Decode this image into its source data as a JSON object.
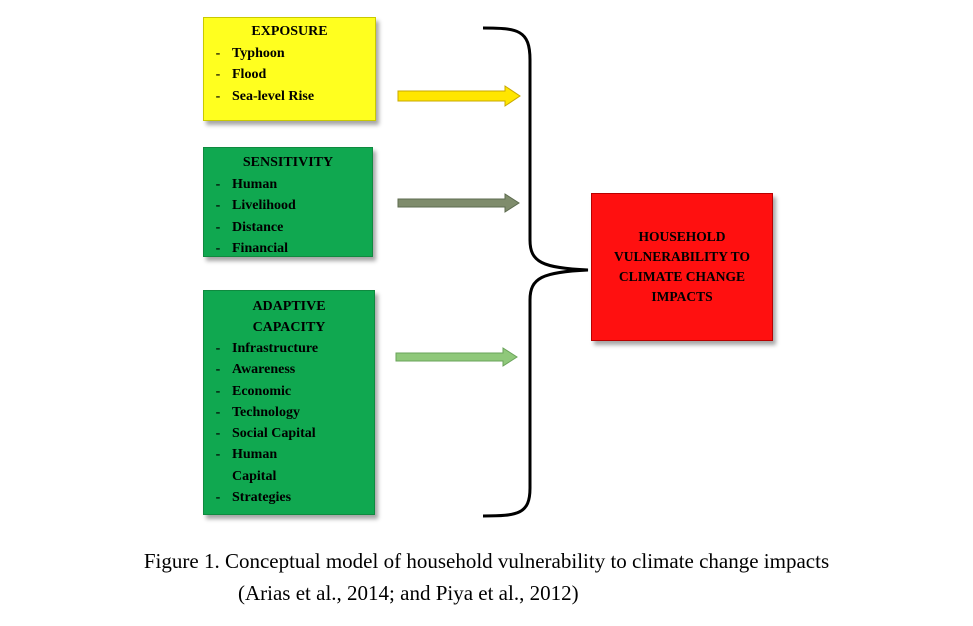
{
  "colors": {
    "exposure": "#ffff1f",
    "sensitivity": "#10a850",
    "adaptive": "#10a850",
    "result": "#ff1010",
    "arrow_yellow": "#ffe600",
    "arrow_gray": "#7f8c6c",
    "arrow_green": "#8fc87a"
  },
  "boxes": {
    "exposure": {
      "title": "EXPOSURE",
      "items": [
        "Typhoon",
        "Flood",
        "Sea-level Rise"
      ]
    },
    "sensitivity": {
      "title": "SENSITIVITY",
      "items": [
        "Human",
        "Livelihood",
        "Distance",
        "Financial"
      ]
    },
    "adaptive": {
      "title_line_1": "ADAPTIVE",
      "title_line_2": "CAPACITY",
      "items": [
        "Infrastructure",
        "Awareness",
        "Economic",
        "Technology",
        "Social Capital",
        "Human",
        "Capital",
        "Strategies"
      ]
    },
    "result": {
      "text": "HOUSEHOLD VULNERABILITY TO CLIMATE CHANGE IMPACTS"
    }
  },
  "dash": "-",
  "caption": {
    "line_1": "Figure 1. Conceptual model of household vulnerability to climate change impacts",
    "line_2": "(Arias et al., 2014; and Piya et al., 2012)"
  }
}
